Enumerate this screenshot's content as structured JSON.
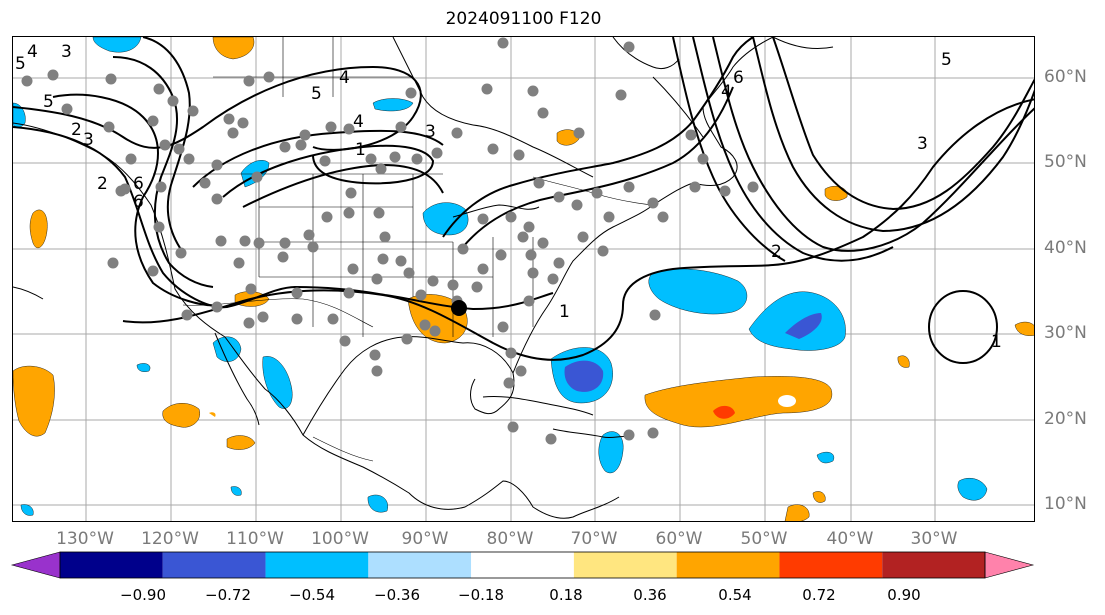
{
  "title": "2024091100 F120",
  "longitude_labels": [
    "130°W",
    "120°W",
    "110°W",
    "100°W",
    "90°W",
    "80°W",
    "70°W",
    "60°W",
    "50°W",
    "40°W",
    "30°W"
  ],
  "latitude_labels": [
    "60°N",
    "50°N",
    "40°N",
    "30°N",
    "20°N",
    "10°N"
  ],
  "colorbar": {
    "tick_labels": [
      "−0.90",
      "−0.72",
      "−0.54",
      "−0.36",
      "−0.18",
      "0.18",
      "0.36",
      "0.54",
      "0.72",
      "0.90"
    ],
    "colors": [
      "#9932CC",
      "#00008B",
      "#3A56D4",
      "#00BFFF",
      "#ADDFFF",
      "#FFFFFF",
      "#FFE680",
      "#FFA500",
      "#FF3B00",
      "#B22222",
      "#FF82AB"
    ]
  },
  "contour_labels": [
    "4",
    "5",
    "3",
    "4",
    "3",
    "1",
    "2",
    "6",
    "5",
    "2",
    "6",
    "4",
    "5",
    "3",
    "2",
    "1",
    "1",
    "5",
    "4",
    "3",
    "6"
  ],
  "colors": {
    "contour": "#000000",
    "grid": "#a0a0a0",
    "stations": "#808080",
    "tick_text": "#7a7a7a"
  }
}
